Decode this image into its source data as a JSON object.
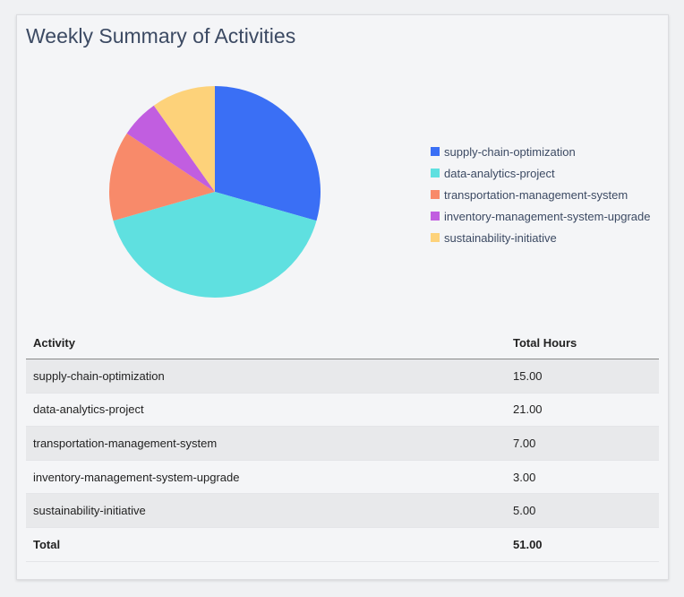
{
  "title": "Weekly Summary of Activities",
  "chart_data": {
    "type": "pie",
    "categories": [
      "supply-chain-optimization",
      "data-analytics-project",
      "transportation-management-system",
      "inventory-management-system-upgrade",
      "sustainability-initiative"
    ],
    "values": [
      15,
      21,
      7,
      3,
      5
    ],
    "colors": [
      "#3a6ff5",
      "#5fe0e0",
      "#f88a6a",
      "#c15ee0",
      "#fdd27a"
    ],
    "legend_position": "right"
  },
  "table": {
    "headers": [
      "Activity",
      "Total Hours"
    ],
    "rows": [
      [
        "supply-chain-optimization",
        "15.00"
      ],
      [
        "data-analytics-project",
        "21.00"
      ],
      [
        "transportation-management-system",
        "7.00"
      ],
      [
        "inventory-management-system-upgrade",
        "3.00"
      ],
      [
        "sustainability-initiative",
        "5.00"
      ]
    ],
    "total": [
      "Total",
      "51.00"
    ]
  }
}
